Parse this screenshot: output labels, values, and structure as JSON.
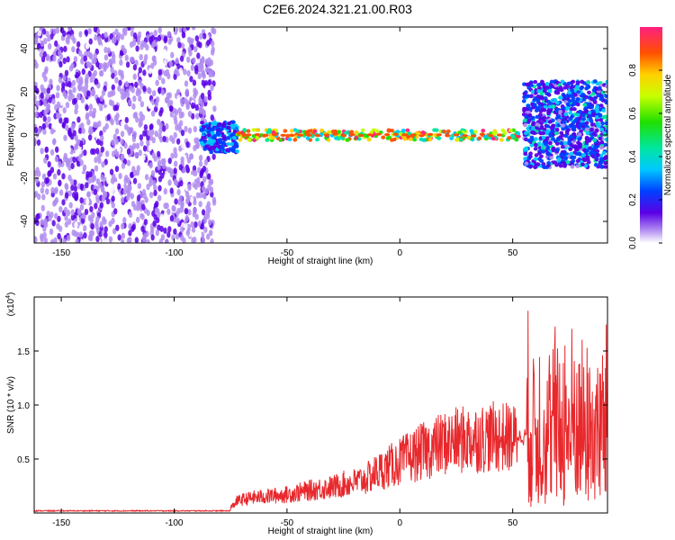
{
  "title": "C2E6.2024.321.21.00.R03",
  "colors": {
    "snr_line": "#e8282c",
    "scatter_violet": "#6a1fe0"
  },
  "chart_data": [
    {
      "type": "heatmap",
      "xlabel": "Height of straight line (km)",
      "ylabel": "Frequency (Hz)",
      "xlim": [
        -162,
        92
      ],
      "ylim": [
        -50,
        50
      ],
      "x_ticks": [
        -150,
        -100,
        -50,
        0,
        50
      ],
      "x_tick_labels": [
        "-150",
        "-100",
        "-50",
        "0",
        "50"
      ],
      "y_ticks": [
        -40,
        -20,
        0,
        20,
        40
      ],
      "y_tick_labels": [
        "-40",
        "-20",
        "0",
        "20",
        "40"
      ],
      "colorbar": {
        "label": "Normalized spectral amplitude",
        "range": [
          0.0,
          1.0
        ],
        "ticks": [
          0.0,
          0.2,
          0.4,
          0.6,
          0.8
        ],
        "tick_labels": [
          "0.0",
          "0.2",
          "0.4",
          "0.6",
          "0.8"
        ]
      },
      "regions": [
        {
          "x_range": [
            -162,
            -82
          ],
          "freq_range": [
            -50,
            50
          ],
          "amplitude": 0.1
        },
        {
          "x_range": [
            -88,
            -72
          ],
          "freq_range": [
            -8,
            6
          ],
          "amplitude": 0.35
        },
        {
          "x_range": [
            -72,
            53
          ],
          "freq_range": [
            -2,
            2
          ],
          "amplitude": 0.9
        },
        {
          "x_range": [
            55,
            92
          ],
          "freq_range": [
            -15,
            25
          ],
          "amplitude": 0.3
        }
      ]
    },
    {
      "type": "line",
      "xlabel": "Height of straight line (km)",
      "ylabel": "SNR (10 * v/v)",
      "y_multiplier": "(x10",
      "y_multiplier_exp": "4",
      "y_multiplier_close": ")",
      "xlim": [
        -162,
        92
      ],
      "ylim": [
        0,
        2.0
      ],
      "x_ticks": [
        -150,
        -100,
        -50,
        0,
        50
      ],
      "x_tick_labels": [
        "-150",
        "-100",
        "-50",
        "0",
        "50"
      ],
      "y_ticks": [
        0.5,
        1.0,
        1.5
      ],
      "y_tick_labels": [
        "0.5",
        "1.0",
        "1.5"
      ],
      "series": [
        {
          "x": [
            -162,
            -140,
            -120,
            -100,
            -85,
            -80,
            -75,
            -72,
            -65,
            -60,
            -55,
            -50,
            -45,
            -40,
            -35,
            -30,
            -25,
            -20,
            -15,
            -10,
            -5,
            0,
            5,
            10,
            15,
            20,
            25,
            30,
            35,
            40,
            45,
            50,
            55,
            60,
            65,
            70,
            75,
            80,
            85,
            92
          ],
          "y": [
            0.02,
            0.02,
            0.02,
            0.02,
            0.02,
            0.03,
            0.05,
            0.12,
            0.15,
            0.16,
            0.17,
            0.18,
            0.2,
            0.22,
            0.24,
            0.25,
            0.28,
            0.3,
            0.33,
            0.4,
            0.45,
            0.5,
            0.55,
            0.6,
            0.64,
            0.68,
            0.7,
            0.72,
            0.73,
            0.74,
            0.74,
            0.73,
            0.7,
            0.9,
            0.8,
            0.65,
            0.65,
            0.6,
            0.65,
            0.7
          ]
        }
      ]
    }
  ]
}
